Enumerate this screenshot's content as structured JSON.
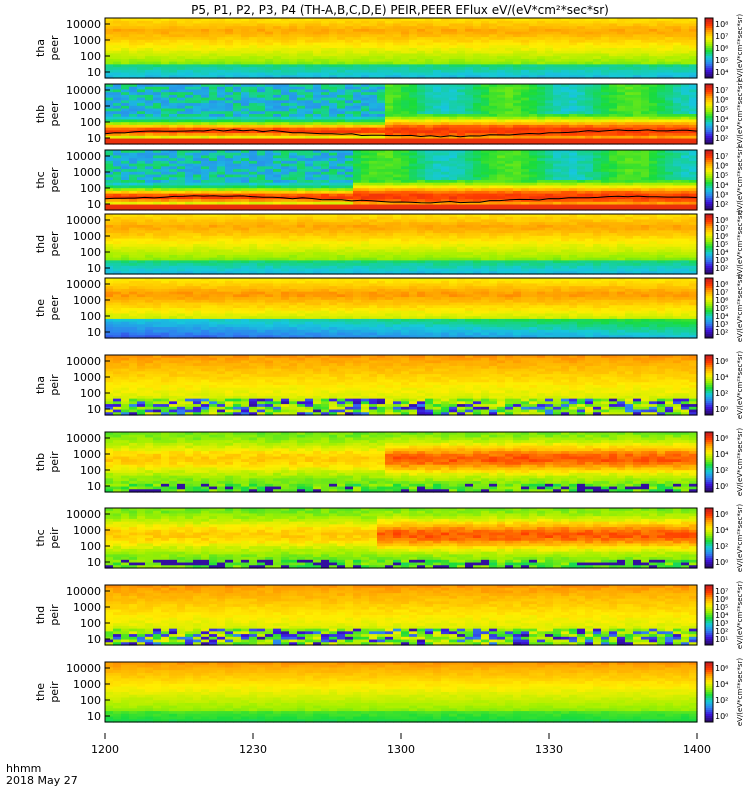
{
  "title": "P5, P1, P2, P3, P4 (TH-A,B,C,D,E) PEIR,PEER EFlux eV/(eV*cm²*sec*sr)",
  "footer": {
    "time_label": "hhmm",
    "date_label": "2018 May 27"
  },
  "colorbar_label": "[eV/(cm²-s-sr-eV)]",
  "colors": {
    "background": "#ffffff",
    "axis": "#000000",
    "colormap": [
      "#2a0a6e",
      "#3c14dc",
      "#2f7ff0",
      "#16c8dc",
      "#19dc3c",
      "#a0f000",
      "#ffee00",
      "#ffa800",
      "#ff3c00",
      "#c81e1e"
    ]
  },
  "chart_data": {
    "type": "heatmap",
    "x_axis": {
      "range": [
        "12:00",
        "14:00"
      ],
      "ticks": [
        "1200",
        "1230",
        "1300",
        "1330",
        "1400"
      ]
    },
    "y_scale": "log",
    "panels": [
      {
        "id": "tha_peer",
        "label1": "tha",
        "label2": "peer",
        "yticks": [
          "10000",
          "1000",
          "100",
          "10"
        ],
        "cticks": [
          "10⁸",
          "10⁷",
          "10⁶",
          "10⁵",
          "10⁴"
        ],
        "cunit": "eV/(eV*cm²*sec*sr)",
        "pattern": "electron_hot"
      },
      {
        "id": "thb_peer",
        "label1": "thb",
        "label2": "peer",
        "yticks": [
          "10000",
          "1000",
          "100",
          "10"
        ],
        "cticks": [
          "10⁷",
          "10⁶",
          "10⁵",
          "10⁴",
          "10³",
          "10²"
        ],
        "cunit": "eV/(eV*cm²*sec*sr)",
        "pattern": "electron_transition",
        "transition": "12:57",
        "scpot_line": true
      },
      {
        "id": "thc_peer",
        "label1": "thc",
        "label2": "peer",
        "yticks": [
          "10000",
          "1000",
          "100",
          "10"
        ],
        "cticks": [
          "10⁷",
          "10⁶",
          "10⁵",
          "10⁴",
          "10³",
          "10²"
        ],
        "cunit": "eV/(eV*cm²*sec*sr)",
        "pattern": "electron_transition",
        "transition": "12:51",
        "scpot_line": true
      },
      {
        "id": "thd_peer",
        "label1": "thd",
        "label2": "peer",
        "yticks": [
          "10000",
          "1000",
          "100",
          "10"
        ],
        "cticks": [
          "10⁸",
          "10⁷",
          "10⁶",
          "10⁵",
          "10⁴",
          "10³",
          "10²"
        ],
        "cunit": "eV/(eV*cm²*sec*sr)",
        "pattern": "electron_hot"
      },
      {
        "id": "the_peer",
        "label1": "the",
        "label2": "peer",
        "yticks": [
          "10000",
          "1000",
          "100",
          "10"
        ],
        "cticks": [
          "10⁸",
          "10⁷",
          "10⁶",
          "10⁵",
          "10⁴",
          "10³",
          "10²"
        ],
        "cunit": "eV/(eV*cm²*sec*sr)",
        "pattern": "electron_hot_low"
      },
      {
        "id": "tha_peir",
        "label1": "tha",
        "label2": "peir",
        "yticks": [
          "10000",
          "1000",
          "100",
          "10"
        ],
        "cticks": [
          "10⁶",
          "10⁴",
          "10²",
          "10⁰"
        ],
        "cunit": "eV/(eV*cm²*sec*sr)",
        "pattern": "ion_speckle"
      },
      {
        "id": "thb_peir",
        "label1": "thb",
        "label2": "peir",
        "yticks": [
          "10000",
          "1000",
          "100",
          "10"
        ],
        "cticks": [
          "10⁶",
          "10⁴",
          "10²",
          "10⁰"
        ],
        "cunit": "eV/(eV*cm²*sec*sr)",
        "pattern": "ion_band",
        "transition": "12:57"
      },
      {
        "id": "thc_peir",
        "label1": "thc",
        "label2": "peir",
        "yticks": [
          "10000",
          "1000",
          "100",
          "10"
        ],
        "cticks": [
          "10⁶",
          "10⁴",
          "10²",
          "10⁰"
        ],
        "cunit": "eV/(eV*cm²*sec*sr)",
        "pattern": "ion_band",
        "transition": "12:55"
      },
      {
        "id": "thd_peir",
        "label1": "thd",
        "label2": "peir",
        "yticks": [
          "10000",
          "1000",
          "100",
          "10"
        ],
        "cticks": [
          "10⁷",
          "10⁶",
          "10⁵",
          "10⁴",
          "10³",
          "10²",
          "10¹"
        ],
        "cunit": "eV/(eV*cm²*sec*sr)",
        "pattern": "ion_speckle"
      },
      {
        "id": "the_peir",
        "label1": "the",
        "label2": "peir",
        "yticks": [
          "10000",
          "1000",
          "100",
          "10"
        ],
        "cticks": [
          "10⁶",
          "10⁴",
          "10²",
          "10⁰"
        ],
        "cunit": "eV/(eV*cm²*sec*sr)",
        "pattern": "ion_smooth"
      }
    ]
  }
}
